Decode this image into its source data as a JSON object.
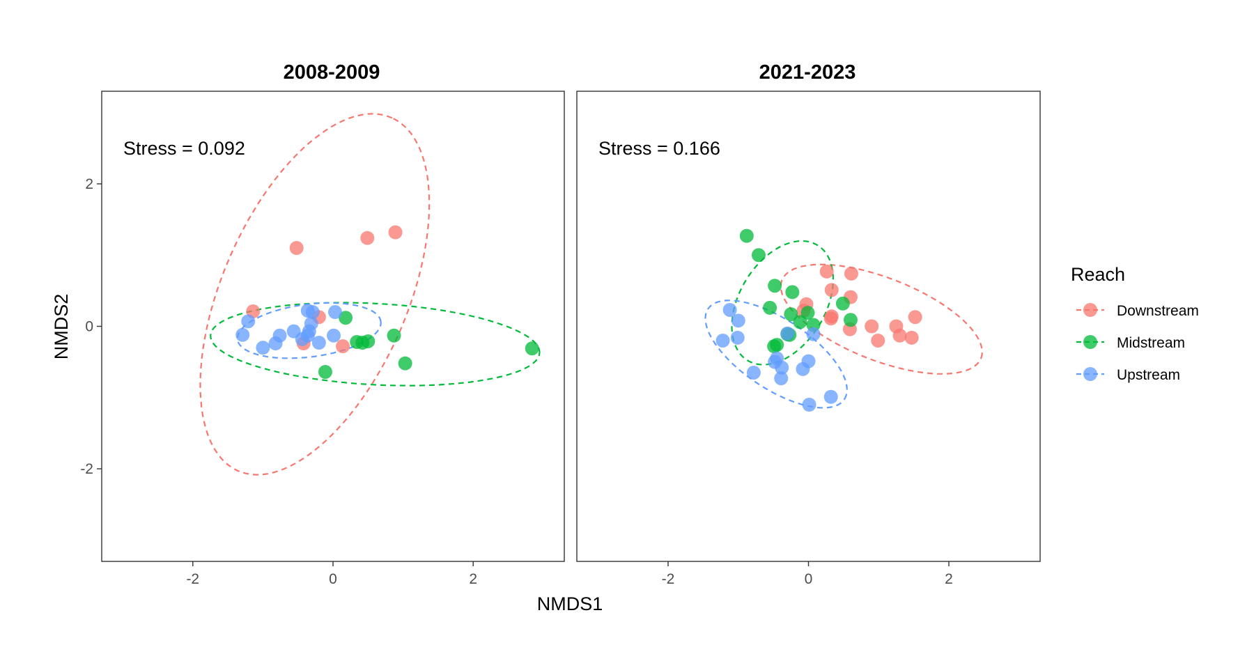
{
  "figure": {
    "xlabel": "NMDS1",
    "ylabel": "NMDS2"
  },
  "legend": {
    "title": "Reach",
    "position": "right",
    "items": [
      {
        "label": "Downstream",
        "color": "#F8766D"
      },
      {
        "label": "Midstream",
        "color": "#00BA38"
      },
      {
        "label": "Upstream",
        "color": "#619CFF"
      }
    ]
  },
  "chart_data": [
    {
      "type": "scatter",
      "title": "2008-2009",
      "annotation": "Stress = 0.092",
      "xlabel": "NMDS1",
      "ylabel": "NMDS2",
      "xlim": [
        -3.3,
        3.3
      ],
      "ylim": [
        -3.3,
        3.3
      ],
      "xticks": [
        -2,
        0,
        2
      ],
      "yticks": [
        -2,
        0,
        2
      ],
      "grid": false,
      "series": [
        {
          "name": "Downstream",
          "color": "#F8766D",
          "points": [
            [
              -0.52,
              1.1
            ],
            [
              0.49,
              1.24
            ],
            [
              0.89,
              1.32
            ],
            [
              -1.14,
              0.21
            ],
            [
              -0.2,
              0.13
            ],
            [
              0.14,
              -0.28
            ],
            [
              -0.42,
              -0.24
            ]
          ],
          "ellipse": {
            "cx": -0.26,
            "cy": 0.45,
            "a": 2.71,
            "b": 1.32,
            "angle_deg": 66
          }
        },
        {
          "name": "Midstream",
          "color": "#00BA38",
          "points": [
            [
              0.18,
              0.12
            ],
            [
              0.34,
              -0.22
            ],
            [
              0.42,
              -0.23
            ],
            [
              0.5,
              -0.21
            ],
            [
              0.87,
              -0.13
            ],
            [
              1.03,
              -0.52
            ],
            [
              -0.11,
              -0.64
            ],
            [
              2.84,
              -0.31
            ]
          ],
          "ellipse": {
            "cx": 0.6,
            "cy": -0.25,
            "a": 2.35,
            "b": 0.57,
            "angle_deg": -3
          }
        },
        {
          "name": "Upstream",
          "color": "#619CFF",
          "points": [
            [
              -1.21,
              0.07
            ],
            [
              -1.29,
              -0.12
            ],
            [
              -1.0,
              -0.3
            ],
            [
              -0.82,
              -0.24
            ],
            [
              -0.76,
              -0.13
            ],
            [
              -0.56,
              -0.07
            ],
            [
              -0.44,
              -0.18
            ],
            [
              -0.36,
              -0.13
            ],
            [
              -0.34,
              -0.07
            ],
            [
              -0.31,
              0.04
            ],
            [
              -0.29,
              0.2
            ],
            [
              -0.36,
              0.22
            ],
            [
              -0.2,
              -0.23
            ],
            [
              0.03,
              0.2
            ],
            [
              0.01,
              -0.13
            ]
          ],
          "ellipse": {
            "cx": -0.34,
            "cy": -0.06,
            "a": 1.03,
            "b": 0.37,
            "angle_deg": 7
          }
        }
      ]
    },
    {
      "type": "scatter",
      "title": "2021-2023",
      "annotation": "Stress = 0.166",
      "xlabel": "NMDS1",
      "ylabel": "NMDS2",
      "xlim": [
        -3.3,
        3.3
      ],
      "ylim": [
        -3.3,
        3.3
      ],
      "xticks": [
        -2,
        0,
        2
      ],
      "yticks": [
        -2,
        0,
        2
      ],
      "grid": false,
      "series": [
        {
          "name": "Downstream",
          "color": "#F8766D",
          "points": [
            [
              0.26,
              0.77
            ],
            [
              0.61,
              0.74
            ],
            [
              0.33,
              0.51
            ],
            [
              0.6,
              0.41
            ],
            [
              -0.03,
              0.31
            ],
            [
              -0.07,
              0.22
            ],
            [
              0.32,
              0.11
            ],
            [
              0.33,
              0.14
            ],
            [
              0.59,
              -0.04
            ],
            [
              0.9,
              0.0
            ],
            [
              1.25,
              0.0
            ],
            [
              1.3,
              -0.13
            ],
            [
              1.47,
              -0.16
            ],
            [
              0.99,
              -0.2
            ],
            [
              1.52,
              0.13
            ]
          ],
          "ellipse": {
            "cx": 1.04,
            "cy": 0.1,
            "a": 1.52,
            "b": 0.58,
            "angle_deg": -21
          }
        },
        {
          "name": "Midstream",
          "color": "#00BA38",
          "points": [
            [
              -0.88,
              1.27
            ],
            [
              -0.71,
              1.0
            ],
            [
              -0.48,
              0.57
            ],
            [
              -0.23,
              0.48
            ],
            [
              -0.55,
              0.26
            ],
            [
              -0.25,
              0.17
            ],
            [
              -0.01,
              0.19
            ],
            [
              0.07,
              0.02
            ],
            [
              -0.3,
              -0.11
            ],
            [
              -0.27,
              -0.12
            ],
            [
              -0.45,
              -0.26
            ],
            [
              -0.49,
              -0.28
            ],
            [
              0.49,
              0.32
            ],
            [
              0.6,
              0.09
            ],
            [
              -0.12,
              0.06
            ]
          ],
          "ellipse": {
            "cx": -0.37,
            "cy": 0.33,
            "a": 0.95,
            "b": 0.61,
            "angle_deg": 58
          }
        },
        {
          "name": "Upstream",
          "color": "#619CFF",
          "points": [
            [
              -1.12,
              0.23
            ],
            [
              -1.0,
              0.08
            ],
            [
              -1.22,
              -0.2
            ],
            [
              -1.01,
              -0.16
            ],
            [
              -0.3,
              -0.1
            ],
            [
              0.07,
              -0.11
            ],
            [
              -0.48,
              -0.5
            ],
            [
              -0.45,
              -0.45
            ],
            [
              -0.38,
              -0.58
            ],
            [
              -0.78,
              -0.65
            ],
            [
              -0.39,
              -0.73
            ],
            [
              0.0,
              -0.49
            ],
            [
              -0.08,
              -0.6
            ],
            [
              0.32,
              -0.99
            ],
            [
              0.01,
              -1.1
            ]
          ],
          "ellipse": {
            "cx": -0.46,
            "cy": -0.39,
            "a": 1.16,
            "b": 0.49,
            "angle_deg": -33
          }
        }
      ]
    }
  ]
}
